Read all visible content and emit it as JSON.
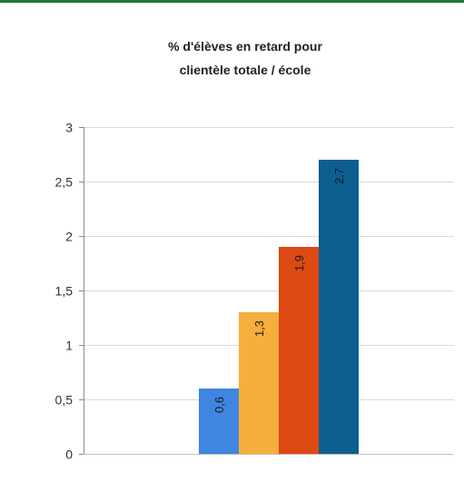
{
  "chart_data": {
    "type": "bar",
    "title_lines": [
      "% d'élèves en retard pour",
      "clientèle totale / école"
    ],
    "xlabel": "",
    "ylabel": "",
    "ylim": [
      0,
      3
    ],
    "yticks": [
      {
        "value": 0,
        "label": "0"
      },
      {
        "value": 0.5,
        "label": "0,5"
      },
      {
        "value": 1,
        "label": "1"
      },
      {
        "value": 1.5,
        "label": "1,5"
      },
      {
        "value": 2,
        "label": "2"
      },
      {
        "value": 2.5,
        "label": "2,5"
      },
      {
        "value": 3,
        "label": "3"
      }
    ],
    "grid": true,
    "legend": "none",
    "bars": [
      {
        "value": 0.6,
        "label": "0,6",
        "color": "#3f86e0"
      },
      {
        "value": 1.3,
        "label": "1,3",
        "color": "#f6ae3c"
      },
      {
        "value": 1.9,
        "label": "1,9",
        "color": "#dd4a14"
      },
      {
        "value": 2.7,
        "label": "2,7",
        "color": "#0d5f8f"
      }
    ]
  }
}
